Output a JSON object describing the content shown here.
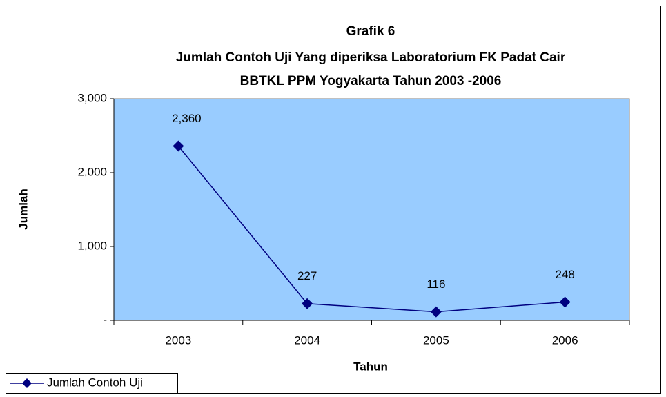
{
  "chart_data": {
    "type": "line",
    "title": [
      "Grafik 6",
      "Jumlah Contoh Uji Yang diperiksa Laboratorium FK Padat Cair",
      "BBTKL PPM Yogyakarta Tahun 2003 -2006"
    ],
    "x_label": "Tahun",
    "y_label": "Jumlah",
    "categories": [
      "2003",
      "2004",
      "2005",
      "2006"
    ],
    "series": [
      {
        "name": "Jumlah Contoh Uji",
        "color": "#000080",
        "values": [
          2360,
          227,
          116,
          248
        ],
        "value_labels": [
          "2,360",
          "227",
          "116",
          "248"
        ]
      }
    ],
    "ylim": [
      0,
      3000
    ],
    "yticks": [
      {
        "value": 0,
        "label": "-"
      },
      {
        "value": 1000,
        "label": "1,000"
      },
      {
        "value": 2000,
        "label": "2,000"
      },
      {
        "value": 3000,
        "label": "3,000"
      }
    ],
    "plot_background": "#99ccff",
    "legend": "bottom-left"
  }
}
